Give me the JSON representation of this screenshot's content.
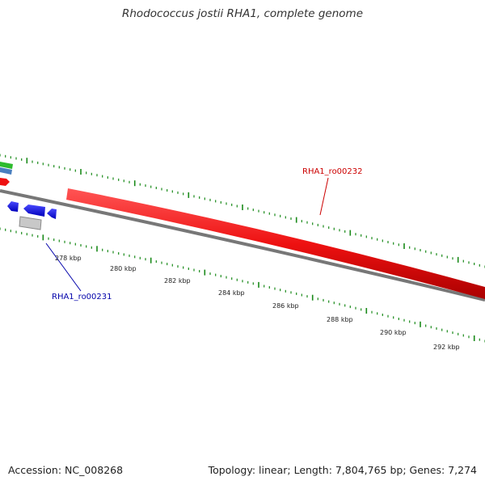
{
  "title": "Rhodococcus jostii RHA1, complete genome",
  "footer": {
    "accession": "Accession: NC_008268",
    "summary": "Topology: linear; Length: 7,804,765 bp; Genes: 7,274"
  },
  "scale": {
    "labels": [
      "278 kbp",
      "280 kbp",
      "282 kbp",
      "284 kbp",
      "286 kbp",
      "288 kbp",
      "290 kbp",
      "292 kbp"
    ]
  },
  "genes": [
    {
      "name": "RHA1_ro00232",
      "color": "#cc0000",
      "strand": "forward"
    },
    {
      "name": "RHA1_ro00231",
      "color": "#0000aa",
      "strand": "reverse"
    }
  ],
  "colors": {
    "backbone": "#777777",
    "tick": "#1a8a1a",
    "forward_gene": "#ee1111",
    "reverse_gene": "#0000ee",
    "other_gene": "#bbbbbb"
  }
}
